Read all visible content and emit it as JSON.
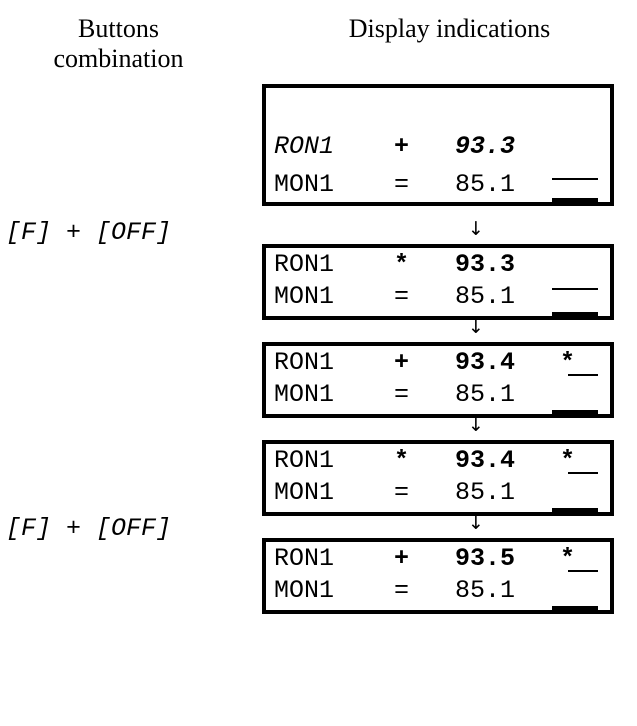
{
  "headers": {
    "buttons": [
      "Buttons",
      "combination"
    ],
    "display": "Display indications"
  },
  "combos": {
    "first": "[F] + [OFF]",
    "second": "[F] + [OFF]"
  },
  "arrow": "↓",
  "displays": [
    {
      "row1": {
        "name": "RON1",
        "op": "+",
        "value": "93.3",
        "flag": ""
      },
      "row2": {
        "name": "MON1",
        "op": "=",
        "value": "85.1"
      }
    },
    {
      "row1": {
        "name": "RON1",
        "op": "*",
        "value": "93.3",
        "flag": ""
      },
      "row2": {
        "name": "MON1",
        "op": "=",
        "value": "85.1"
      }
    },
    {
      "row1": {
        "name": "RON1",
        "op": "+",
        "value": "93.4",
        "flag": "*"
      },
      "row2": {
        "name": "MON1",
        "op": "=",
        "value": "85.1"
      }
    },
    {
      "row1": {
        "name": "RON1",
        "op": "*",
        "value": "93.4",
        "flag": "*"
      },
      "row2": {
        "name": "MON1",
        "op": "=",
        "value": "85.1"
      }
    },
    {
      "row1": {
        "name": "RON1",
        "op": "+",
        "value": "93.5",
        "flag": "*"
      },
      "row2": {
        "name": "MON1",
        "op": "=",
        "value": "85.1"
      }
    }
  ]
}
